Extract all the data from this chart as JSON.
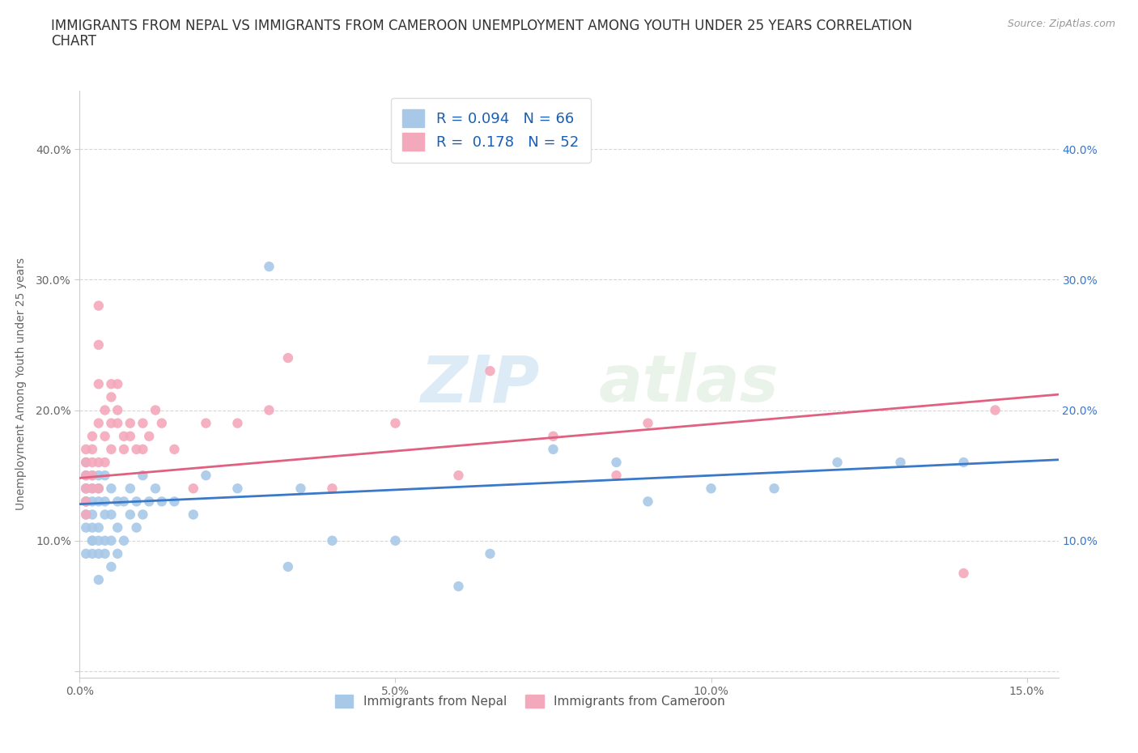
{
  "title_line1": "IMMIGRANTS FROM NEPAL VS IMMIGRANTS FROM CAMEROON UNEMPLOYMENT AMONG YOUTH UNDER 25 YEARS CORRELATION",
  "title_line2": "CHART",
  "source": "Source: ZipAtlas.com",
  "ylabel": "Unemployment Among Youth under 25 years",
  "nepal_color": "#a8c8e8",
  "cameroon_color": "#f4a8bc",
  "nepal_line_color": "#3a78c9",
  "cameroon_line_color": "#e06080",
  "nepal_label": "Immigrants from Nepal",
  "cameroon_label": "Immigrants from Cameroon",
  "nepal_R": 0.094,
  "nepal_N": 66,
  "cameroon_R": 0.178,
  "cameroon_N": 52,
  "xlim": [
    0.0,
    0.155
  ],
  "ylim": [
    -0.005,
    0.445
  ],
  "watermark": "ZIPatlas",
  "nepal_x": [
    0.001,
    0.001,
    0.001,
    0.001,
    0.001,
    0.001,
    0.001,
    0.001,
    0.001,
    0.002,
    0.002,
    0.002,
    0.002,
    0.002,
    0.002,
    0.002,
    0.002,
    0.003,
    0.003,
    0.003,
    0.003,
    0.003,
    0.003,
    0.003,
    0.004,
    0.004,
    0.004,
    0.004,
    0.004,
    0.005,
    0.005,
    0.005,
    0.005,
    0.006,
    0.006,
    0.006,
    0.007,
    0.007,
    0.008,
    0.008,
    0.009,
    0.009,
    0.01,
    0.01,
    0.011,
    0.012,
    0.013,
    0.015,
    0.018,
    0.02,
    0.025,
    0.03,
    0.033,
    0.035,
    0.04,
    0.05,
    0.06,
    0.065,
    0.075,
    0.085,
    0.09,
    0.1,
    0.11,
    0.12,
    0.13,
    0.14
  ],
  "nepal_y": [
    0.13,
    0.14,
    0.15,
    0.16,
    0.09,
    0.11,
    0.12,
    0.13,
    0.14,
    0.09,
    0.1,
    0.11,
    0.13,
    0.14,
    0.15,
    0.1,
    0.12,
    0.07,
    0.09,
    0.1,
    0.11,
    0.13,
    0.14,
    0.15,
    0.09,
    0.1,
    0.12,
    0.13,
    0.15,
    0.08,
    0.1,
    0.12,
    0.14,
    0.09,
    0.11,
    0.13,
    0.1,
    0.13,
    0.12,
    0.14,
    0.11,
    0.13,
    0.12,
    0.15,
    0.13,
    0.14,
    0.13,
    0.13,
    0.12,
    0.15,
    0.14,
    0.31,
    0.08,
    0.14,
    0.1,
    0.1,
    0.065,
    0.09,
    0.17,
    0.16,
    0.13,
    0.14,
    0.14,
    0.16,
    0.16,
    0.16
  ],
  "cameroon_x": [
    0.001,
    0.001,
    0.001,
    0.001,
    0.001,
    0.001,
    0.002,
    0.002,
    0.002,
    0.002,
    0.002,
    0.003,
    0.003,
    0.003,
    0.003,
    0.003,
    0.003,
    0.004,
    0.004,
    0.004,
    0.005,
    0.005,
    0.005,
    0.005,
    0.006,
    0.006,
    0.006,
    0.007,
    0.007,
    0.008,
    0.008,
    0.009,
    0.01,
    0.01,
    0.011,
    0.012,
    0.013,
    0.015,
    0.018,
    0.02,
    0.025,
    0.03,
    0.033,
    0.04,
    0.05,
    0.06,
    0.065,
    0.075,
    0.085,
    0.09,
    0.14,
    0.145
  ],
  "cameroon_y": [
    0.13,
    0.15,
    0.16,
    0.17,
    0.14,
    0.12,
    0.14,
    0.16,
    0.17,
    0.15,
    0.18,
    0.28,
    0.25,
    0.22,
    0.19,
    0.16,
    0.14,
    0.2,
    0.18,
    0.16,
    0.22,
    0.21,
    0.19,
    0.17,
    0.22,
    0.2,
    0.19,
    0.18,
    0.17,
    0.19,
    0.18,
    0.17,
    0.19,
    0.17,
    0.18,
    0.2,
    0.19,
    0.17,
    0.14,
    0.19,
    0.19,
    0.2,
    0.24,
    0.14,
    0.19,
    0.15,
    0.23,
    0.18,
    0.15,
    0.19,
    0.075,
    0.2
  ],
  "nepal_line_x0": 0.0,
  "nepal_line_y0": 0.128,
  "nepal_line_x1": 0.155,
  "nepal_line_y1": 0.162,
  "cameroon_line_x0": 0.0,
  "cameroon_line_y0": 0.148,
  "cameroon_line_x1": 0.155,
  "cameroon_line_y1": 0.212,
  "xticks": [
    0.0,
    0.05,
    0.1,
    0.15
  ],
  "xtick_labels": [
    "0.0%",
    "5.0%",
    "10.0%",
    "15.0%"
  ],
  "yticks": [
    0.0,
    0.1,
    0.2,
    0.3,
    0.4
  ],
  "ytick_labels_left": [
    "",
    "10.0%",
    "20.0%",
    "30.0%",
    "40.0%"
  ],
  "ytick_labels_right": [
    "",
    "10.0%",
    "20.0%",
    "30.0%",
    "40.0%"
  ],
  "grid_color": "#cccccc",
  "background_color": "#ffffff",
  "title_fontsize": 12,
  "axis_label_fontsize": 10,
  "tick_fontsize": 10,
  "legend_fontsize": 13
}
